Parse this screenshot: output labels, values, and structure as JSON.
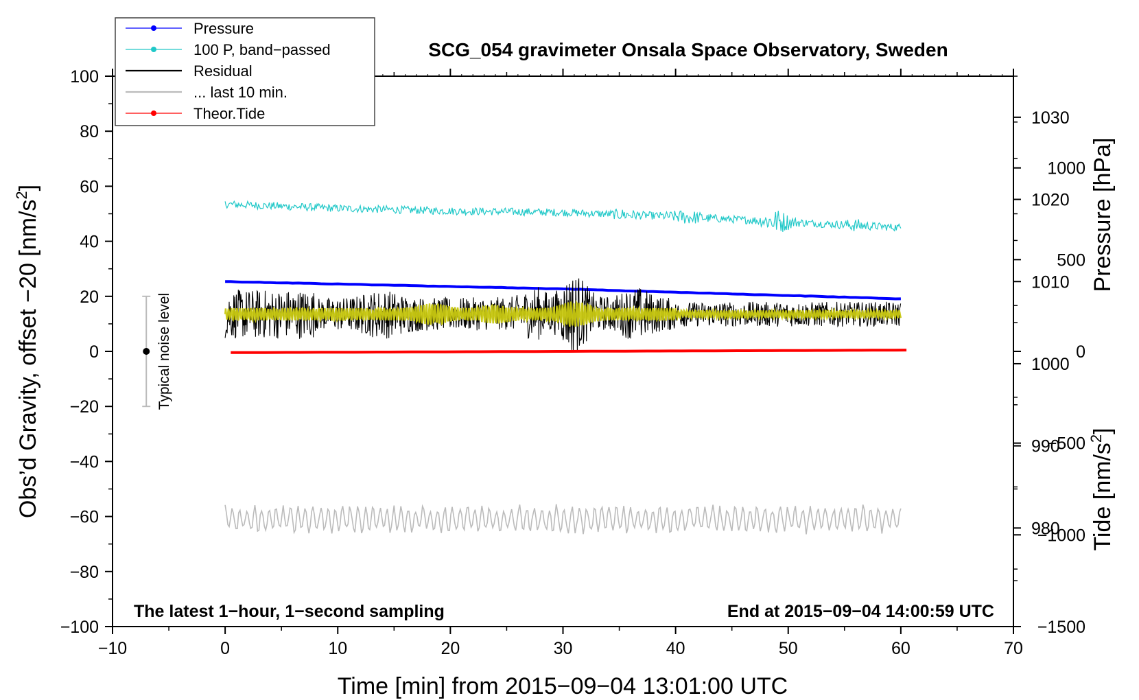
{
  "chart_data": {
    "type": "line",
    "title": "SCG_054 gravimeter Onsala Space Observatory, Sweden",
    "xlabel": "Time [min] from 2015−09−04 13:01:00 UTC",
    "ylabel_left": "Obs’d Gravity, offset −20 [nm/s2]",
    "ylabel_left_main": "Obs’d Gravity, offset −20 [nm/s",
    "ylabel_left_sup": "2",
    "ylabel_left_end": "]",
    "ylabel_pressure": "Pressure [hPa]",
    "ylabel_tide_main": "Tide [nm/s",
    "ylabel_tide_sup": "2",
    "ylabel_tide_end": "]",
    "xlim": [
      -10,
      70
    ],
    "ylim": [
      -100,
      100
    ],
    "pressure_lim": [
      968,
      1035
    ],
    "tide_lim": [
      -1500,
      1500
    ],
    "x_ticks": [
      "−10",
      "0",
      "10",
      "20",
      "30",
      "40",
      "50",
      "60",
      "70"
    ],
    "x_tick_values": [
      -10,
      0,
      10,
      20,
      30,
      40,
      50,
      60,
      70
    ],
    "y_ticks": [
      "−100",
      "−80",
      "−60",
      "−40",
      "−20",
      "0",
      "20",
      "40",
      "60",
      "80",
      "100"
    ],
    "y_tick_values": [
      -100,
      -80,
      -60,
      -40,
      -20,
      0,
      20,
      40,
      60,
      80,
      100
    ],
    "pressure_ticks": [
      "980",
      "990",
      "1000",
      "1010",
      "1020",
      "1030"
    ],
    "pressure_tick_values": [
      980,
      990,
      1000,
      1010,
      1020,
      1030
    ],
    "tide_ticks": [
      "−1500",
      "−1000",
      "−500",
      "0",
      "500",
      "1000"
    ],
    "tide_tick_values": [
      -1500,
      -1000,
      -500,
      0,
      500,
      1000
    ],
    "annotation_left": "The latest 1−hour, 1−second sampling",
    "annotation_right": "End at 2015−09−04 14:00:59 UTC",
    "noise_bar": {
      "label": "Typical noise level",
      "x": -7,
      "center": 0,
      "low": -20,
      "high": 20
    },
    "legend": [
      {
        "label": "Pressure",
        "color": "#0000ff",
        "marker": true
      },
      {
        "label": "100 P, band−passed",
        "color": "#20c8c8",
        "marker": true
      },
      {
        "label": "Residual",
        "color": "#000000",
        "marker": false
      },
      {
        "label": "... last 10 min.",
        "color": "#bbbbbb",
        "marker": false
      },
      {
        "label": "Theor.Tide",
        "color": "#ff0000",
        "marker": true
      }
    ],
    "series": [
      {
        "name": "Pressure",
        "color": "#0000ff",
        "axis": "pressure",
        "x": [
          0,
          30,
          60
        ],
        "values": [
          1010.0,
          1009.1,
          1007.9
        ]
      },
      {
        "name": "100 P, band-passed",
        "color": "#20c8c8",
        "axis": "left",
        "x": [
          0,
          10,
          20,
          30,
          40,
          50,
          60
        ],
        "values": [
          53.5,
          52,
          51,
          50.5,
          49,
          47,
          45
        ]
      },
      {
        "name": "Residual",
        "color": "#000000",
        "axis": "left",
        "x": [
          0,
          10,
          20,
          30,
          40,
          50,
          60
        ],
        "values": [
          13.5,
          13.5,
          13.5,
          14,
          13.5,
          13.5,
          13.5
        ],
        "spread_approx": 8
      },
      {
        "name": "Residual (last 10 min.)",
        "color": "#c8c810",
        "axis": "left",
        "x": [
          0,
          60
        ],
        "values": [
          13.5,
          13.5
        ],
        "spread_approx": 3
      },
      {
        "name": "... last 10 min.",
        "color": "#bbbbbb",
        "axis": "left",
        "x": [
          0,
          60
        ],
        "values": [
          -61,
          -61
        ],
        "spread_approx": 4
      },
      {
        "name": "Theor.Tide",
        "color": "#ff0000",
        "axis": "tide",
        "x": [
          0,
          30,
          60.5
        ],
        "values": [
          -7,
          0,
          7
        ]
      }
    ]
  }
}
